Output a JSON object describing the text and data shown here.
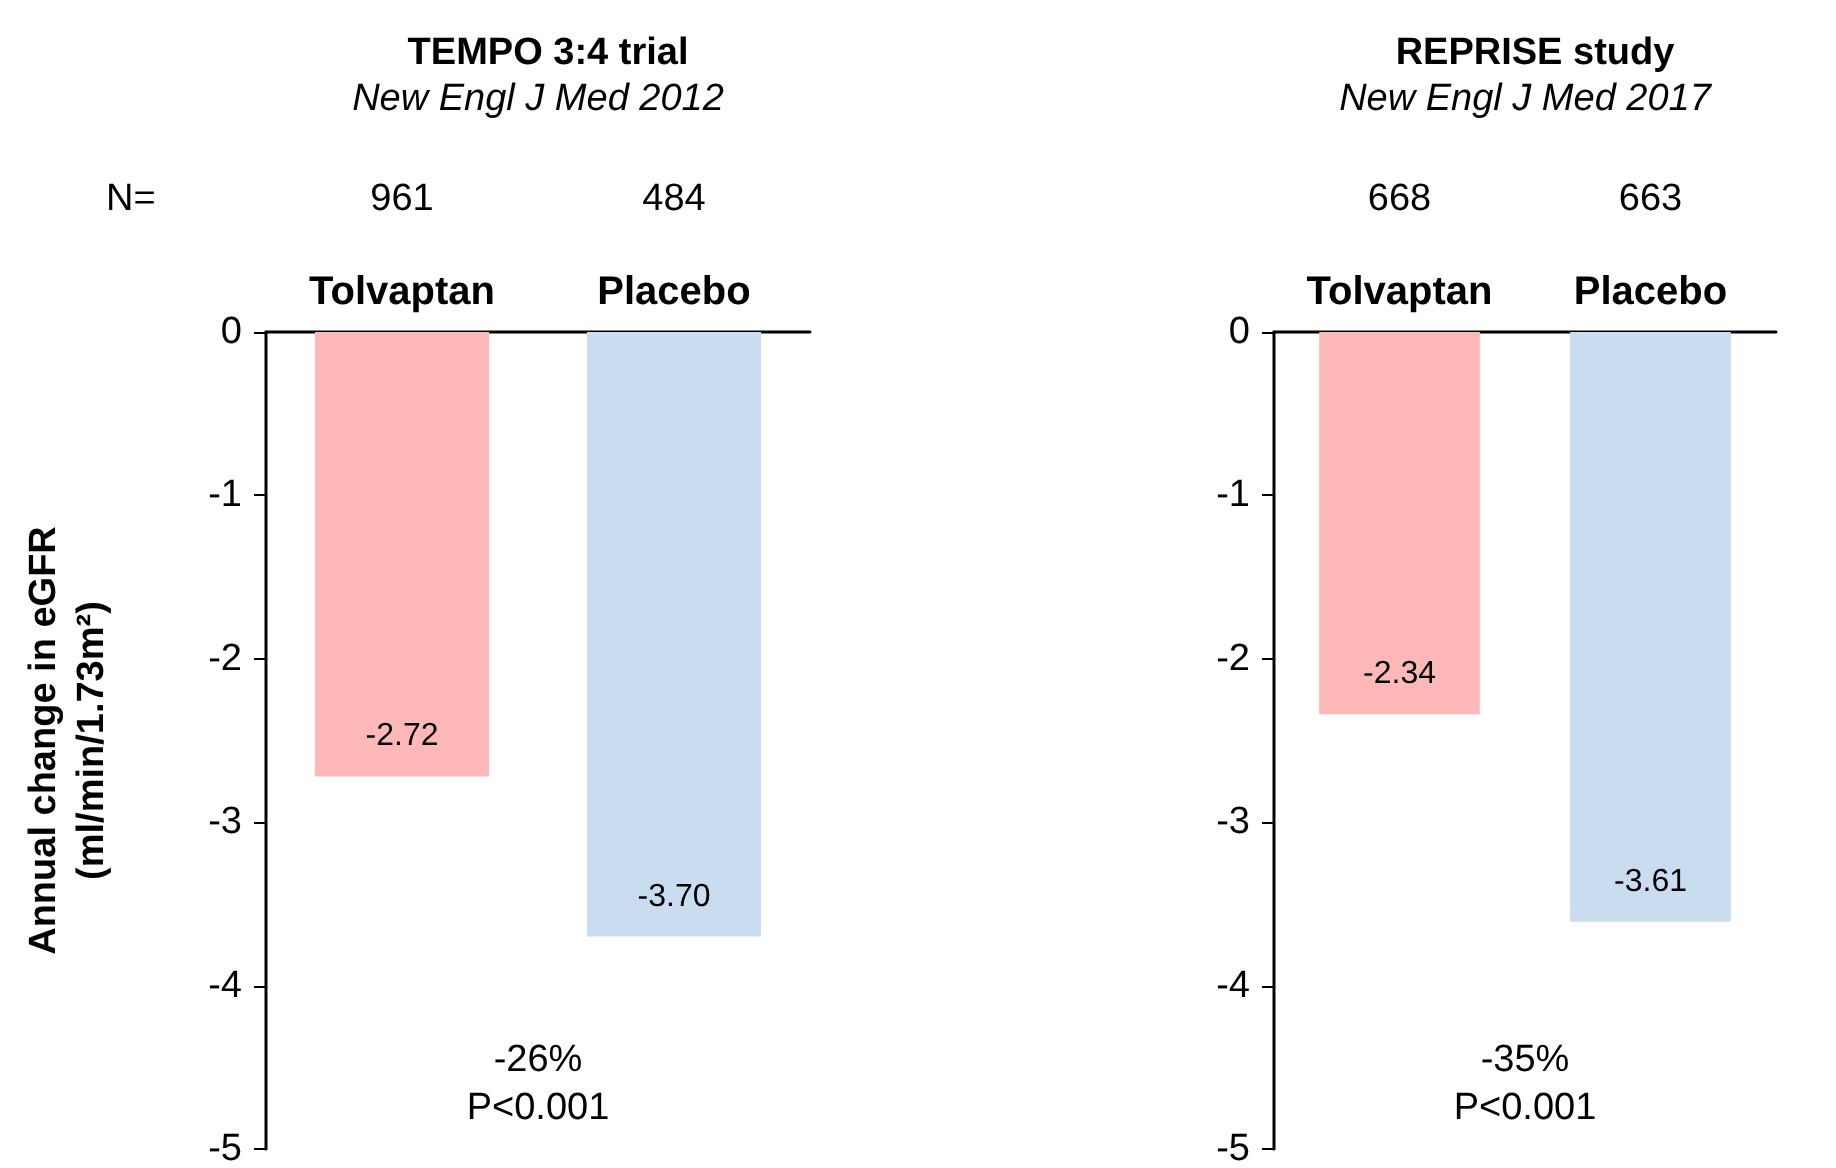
{
  "chart_data": [
    {
      "type": "bar",
      "title": "TEMPO 3:4 trial",
      "subtitle": "New Engl J Med 2012",
      "ylabel": "Annual change in eGFR\n(ml/min/1.73m²)",
      "categories": [
        "Tolvaptan",
        "Placebo"
      ],
      "values": [
        -2.72,
        -3.7
      ],
      "colors": [
        "#ffb8b8",
        "#c9dcf0"
      ],
      "ylim": [
        -5,
        0
      ],
      "yticks": [
        -5,
        -4,
        -3,
        -2,
        -1,
        0
      ],
      "grid": false,
      "data_labels": true,
      "value_labels": [
        "-2.72",
        "-3.70"
      ],
      "annotations": [
        "N=",
        "961",
        "484",
        "-26%\nP<0.001"
      ]
    },
    {
      "type": "bar",
      "title": "REPRISE study",
      "subtitle": "New Engl J Med 2017",
      "categories": [
        "Tolvaptan",
        "Placebo"
      ],
      "values": [
        -2.34,
        -3.61
      ],
      "colors": [
        "#ffb8b8",
        "#c9dcf0"
      ],
      "ylim": [
        -5,
        0
      ],
      "yticks": [
        -5,
        -4,
        -3,
        -2,
        -1,
        0
      ],
      "grid": false,
      "data_labels": true,
      "value_labels": [
        "-2.34",
        "-3.61"
      ],
      "annotations": [
        "668",
        "663",
        "-35%\nP<0.001"
      ]
    }
  ]
}
